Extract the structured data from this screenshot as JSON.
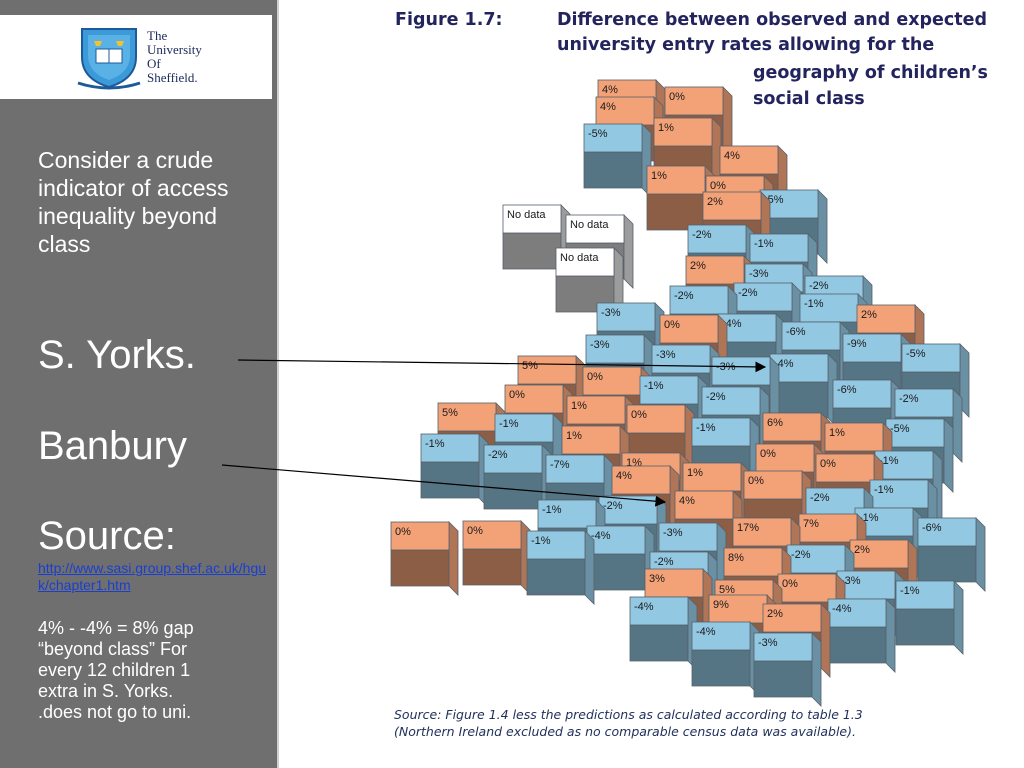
{
  "logo": {
    "lines": [
      "The",
      "University",
      "Of",
      "Sheffield."
    ]
  },
  "sidebar": {
    "intro": "Consider a crude indicator of access inequality beyond class",
    "syorks": "S. Yorks.",
    "banbury": "Banbury",
    "source_label": "Source:",
    "source_link": "http://www.sasi.group.shef.ac.uk/hguk/chapter1.htm",
    "note_lines": [
      "4% - -4% = 8% gap",
      "“beyond class” For",
      "every 12 children 1",
      "extra in S. Yorks.",
      ".does not go to uni."
    ]
  },
  "figure": {
    "title_prefix": "Figure 1.7:",
    "title_lines": [
      "Difference between observed and expected",
      "university entry rates allowing for the",
      "geography of children’s",
      "social class"
    ],
    "source_lines": [
      "Source: Figure 1.4 less the predictions as calculated according to table 1.3",
      "(Northern Ireland excluded as no comparable census data was available)."
    ]
  },
  "colors": {
    "positive": "#f3a278",
    "negative": "#93c8e3",
    "nodata": "#ffffff",
    "sidebar": "#6f6f6f",
    "title": "#23235e"
  },
  "cells": [
    "4%",
    "4%",
    "0%",
    "-5%",
    "1%",
    "4%",
    "1%",
    "0%",
    "2%",
    "-5%",
    "No data",
    "No data",
    "No data",
    "-2%",
    "-1%",
    "2%",
    "-3%",
    "-2%",
    "-2%",
    "-2%",
    "-1%",
    "-3%",
    "0%",
    "-4%",
    "-6%",
    "2%",
    "-9%",
    "-3%",
    "-3%",
    "-3%",
    "-4%",
    "-5%",
    "5%",
    "0%",
    "-1%",
    "-2%",
    "0%",
    "1%",
    "0%",
    "-6%",
    "-2%",
    "5%",
    "-1%",
    "1%",
    "-1%",
    "6%",
    "1%",
    "-5%",
    "-1%",
    "-2%",
    "-7%",
    "1%",
    "0%",
    "0%",
    "-1%",
    "1%",
    "0%",
    "4%",
    "-1%",
    "-2%",
    "4%",
    "-2%",
    "-1%",
    "-1%",
    "-6%",
    "0%",
    "0%",
    "-1%",
    "-4%",
    "-3%",
    "17%",
    "7%",
    "8%",
    "-2%",
    "2%",
    "-2%",
    "3%",
    "5%",
    "0%",
    "-3%",
    "-1%",
    "9%",
    "2%",
    "-4%",
    "-4%",
    "-4%",
    "-3%"
  ]
}
